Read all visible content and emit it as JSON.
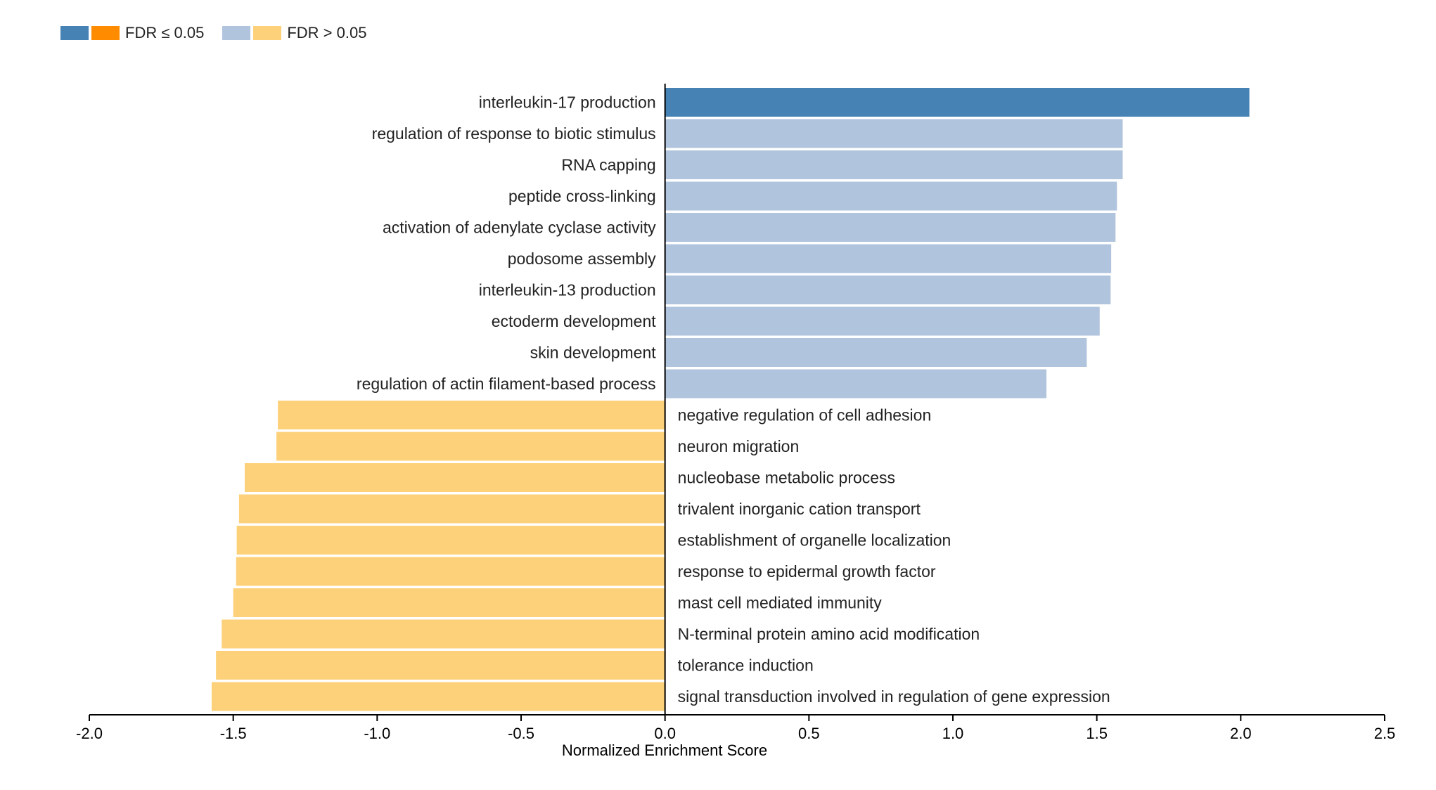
{
  "legend": {
    "significant_label": "FDR ≤ 0.05",
    "nonsignificant_label": "FDR > 0.05"
  },
  "colors": {
    "pos_sig": "#4682b4",
    "neg_sig": "#ff8c00",
    "pos_nonsig": "#b0c4de",
    "neg_nonsig": "#fdd17a",
    "axis": "#000000"
  },
  "chart_data": {
    "type": "bar",
    "orientation": "horizontal",
    "xlabel": "Normalized Enrichment Score",
    "xlim": [
      -2.0,
      2.5
    ],
    "xticks": [
      "-2.0",
      "-1.5",
      "-1.0",
      "-0.5",
      "0.0",
      "0.5",
      "1.0",
      "1.5",
      "2.0",
      "2.5"
    ],
    "grid": false,
    "legend_position": "top-left",
    "bars": [
      {
        "label": "interleukin-17 production",
        "value": 2.03,
        "significant": true
      },
      {
        "label": "regulation of response to biotic stimulus",
        "value": 1.59,
        "significant": false
      },
      {
        "label": "RNA capping",
        "value": 1.59,
        "significant": false
      },
      {
        "label": "peptide cross-linking",
        "value": 1.57,
        "significant": false
      },
      {
        "label": "activation of adenylate cyclase activity",
        "value": 1.565,
        "significant": false
      },
      {
        "label": "podosome assembly",
        "value": 1.55,
        "significant": false
      },
      {
        "label": "interleukin-13 production",
        "value": 1.548,
        "significant": false
      },
      {
        "label": "ectoderm development",
        "value": 1.51,
        "significant": false
      },
      {
        "label": "skin development",
        "value": 1.465,
        "significant": false
      },
      {
        "label": "regulation of actin filament-based process",
        "value": 1.325,
        "significant": false
      },
      {
        "label": "negative regulation of cell adhesion",
        "value": -1.345,
        "significant": false
      },
      {
        "label": "neuron migration",
        "value": -1.35,
        "significant": false
      },
      {
        "label": "nucleobase metabolic process",
        "value": -1.46,
        "significant": false
      },
      {
        "label": "trivalent inorganic cation transport",
        "value": -1.48,
        "significant": false
      },
      {
        "label": "establishment of organelle localization",
        "value": -1.488,
        "significant": false
      },
      {
        "label": "response to epidermal growth factor",
        "value": -1.49,
        "significant": false
      },
      {
        "label": "mast cell mediated immunity",
        "value": -1.5,
        "significant": false
      },
      {
        "label": "N-terminal protein amino acid modification",
        "value": -1.54,
        "significant": false
      },
      {
        "label": "tolerance induction",
        "value": -1.56,
        "significant": false
      },
      {
        "label": "signal transduction involved in regulation of gene expression",
        "value": -1.575,
        "significant": false
      }
    ]
  }
}
